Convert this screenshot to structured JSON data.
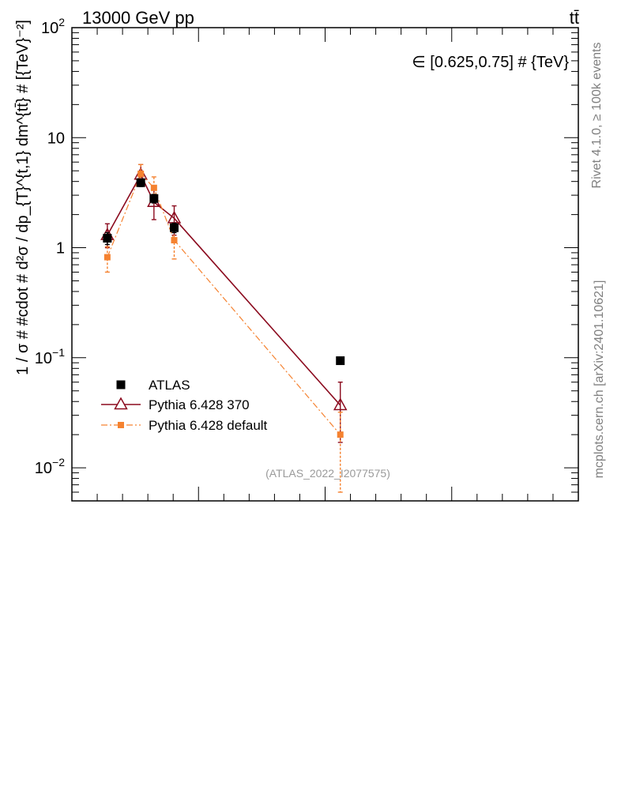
{
  "header": {
    "energy_label": "13000 GeV pp",
    "process_label": "tt̄"
  },
  "side_labels": {
    "rivet": "Rivet 4.1.0, ≥ 100k events",
    "mcplots": "mcplots.cern.ch [arXiv:2401.10621]"
  },
  "chart_data": {
    "type": "scatter",
    "title": "",
    "annotation": "∈ [0.625,0.75] # {TeV}",
    "watermark": "(ATLAS_2022_I2077575)",
    "ylabel": "1 / σ # #cdot # d²σ / dp_{T}^{t,1} dm^{tt̄} # [{TeV}⁻²]",
    "xlabel": "",
    "yscale": "log",
    "ylim": [
      0.005,
      100
    ],
    "xlim": [
      0,
      1
    ],
    "y_ticks": [
      {
        "value": 0.01,
        "base": "10",
        "exp": "−2"
      },
      {
        "value": 0.1,
        "base": "10",
        "exp": "−1"
      },
      {
        "value": 1,
        "base": "1",
        "exp": ""
      },
      {
        "value": 10,
        "base": "10",
        "exp": ""
      },
      {
        "value": 100,
        "base": "10",
        "exp": "2"
      }
    ],
    "grid": false,
    "legend_position": "lower-left",
    "series": [
      {
        "name": "ATLAS",
        "color": "#000000",
        "marker": "square",
        "points": [
          {
            "x": 0.07,
            "y": 1.22,
            "err_lo": 0.15,
            "err_hi": 0.15
          },
          {
            "x": 0.136,
            "y": 3.9,
            "err_lo": 0.3,
            "err_hi": 0.3
          },
          {
            "x": 0.162,
            "y": 2.8,
            "err_lo": 0.25,
            "err_hi": 0.25
          },
          {
            "x": 0.202,
            "y": 1.52,
            "err_lo": 0.15,
            "err_hi": 0.15
          },
          {
            "x": 0.53,
            "y": 0.094,
            "err_lo": 0.005,
            "err_hi": 0.005
          }
        ]
      },
      {
        "name": "Pythia 6.428 370",
        "color": "#8b0a1e",
        "marker": "triangle-open",
        "line": "solid",
        "points": [
          {
            "x": 0.07,
            "y": 1.3,
            "err_lo": 0.3,
            "err_hi": 0.35
          },
          {
            "x": 0.136,
            "y": 4.6,
            "err_lo": 0.9,
            "err_hi": 1.1
          },
          {
            "x": 0.162,
            "y": 2.6,
            "err_lo": 0.8,
            "err_hi": 0.8
          },
          {
            "x": 0.202,
            "y": 1.85,
            "err_lo": 0.55,
            "err_hi": 0.55
          },
          {
            "x": 0.53,
            "y": 0.037,
            "err_lo": 0.02,
            "err_hi": 0.023
          }
        ]
      },
      {
        "name": "Pythia 6.428 default",
        "color": "#f58230",
        "marker": "square-small",
        "line": "dash-dot",
        "points": [
          {
            "x": 0.07,
            "y": 0.82,
            "err_lo": 0.22,
            "err_hi": 0.2
          },
          {
            "x": 0.136,
            "y": 4.7,
            "err_lo": 1.0,
            "err_hi": 1.0
          },
          {
            "x": 0.162,
            "y": 3.5,
            "err_lo": 0.9,
            "err_hi": 0.9
          },
          {
            "x": 0.202,
            "y": 1.17,
            "err_lo": 0.38,
            "err_hi": 0.38
          },
          {
            "x": 0.53,
            "y": 0.02,
            "err_lo": 0.014,
            "err_hi": 0.012
          }
        ]
      }
    ]
  }
}
